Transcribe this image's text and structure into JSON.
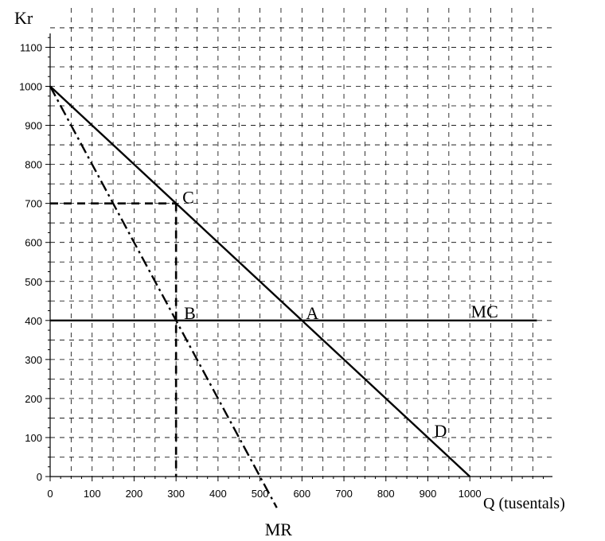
{
  "chart_data": {
    "type": "line",
    "ylabel": "Kr",
    "xlabel": "Q (tusentals)",
    "xlim": [
      0,
      1200
    ],
    "ylim": [
      0,
      1100
    ],
    "x_ticks": [
      0,
      100,
      200,
      300,
      400,
      500,
      600,
      700,
      800,
      900,
      1000
    ],
    "y_ticks": [
      0,
      100,
      200,
      300,
      400,
      500,
      600,
      700,
      800,
      900,
      1000,
      1100
    ],
    "grid": true,
    "series": [
      {
        "name": "D",
        "style": "solid",
        "points": [
          [
            0,
            1000
          ],
          [
            1000,
            0
          ]
        ]
      },
      {
        "name": "MR",
        "style": "dash-dot",
        "points": [
          [
            0,
            1000
          ],
          [
            500,
            0
          ],
          [
            540,
            -80
          ]
        ]
      },
      {
        "name": "MC",
        "style": "solid",
        "points": [
          [
            0,
            400
          ],
          [
            1160,
            400
          ]
        ]
      }
    ],
    "reference_lines": [
      {
        "style": "dashed",
        "points": [
          [
            0,
            700
          ],
          [
            300,
            700
          ]
        ]
      },
      {
        "style": "dashed",
        "points": [
          [
            300,
            700
          ],
          [
            300,
            0
          ]
        ]
      }
    ],
    "annotations": [
      {
        "text": "C",
        "x": 300,
        "y": 700
      },
      {
        "text": "B",
        "x": 300,
        "y": 400
      },
      {
        "text": "A",
        "x": 600,
        "y": 400
      },
      {
        "text": "D",
        "x": 900,
        "y": 100
      },
      {
        "text": "MC",
        "x": 1050,
        "y": 400
      },
      {
        "text": "MR",
        "x": 540,
        "y": -80
      }
    ]
  }
}
